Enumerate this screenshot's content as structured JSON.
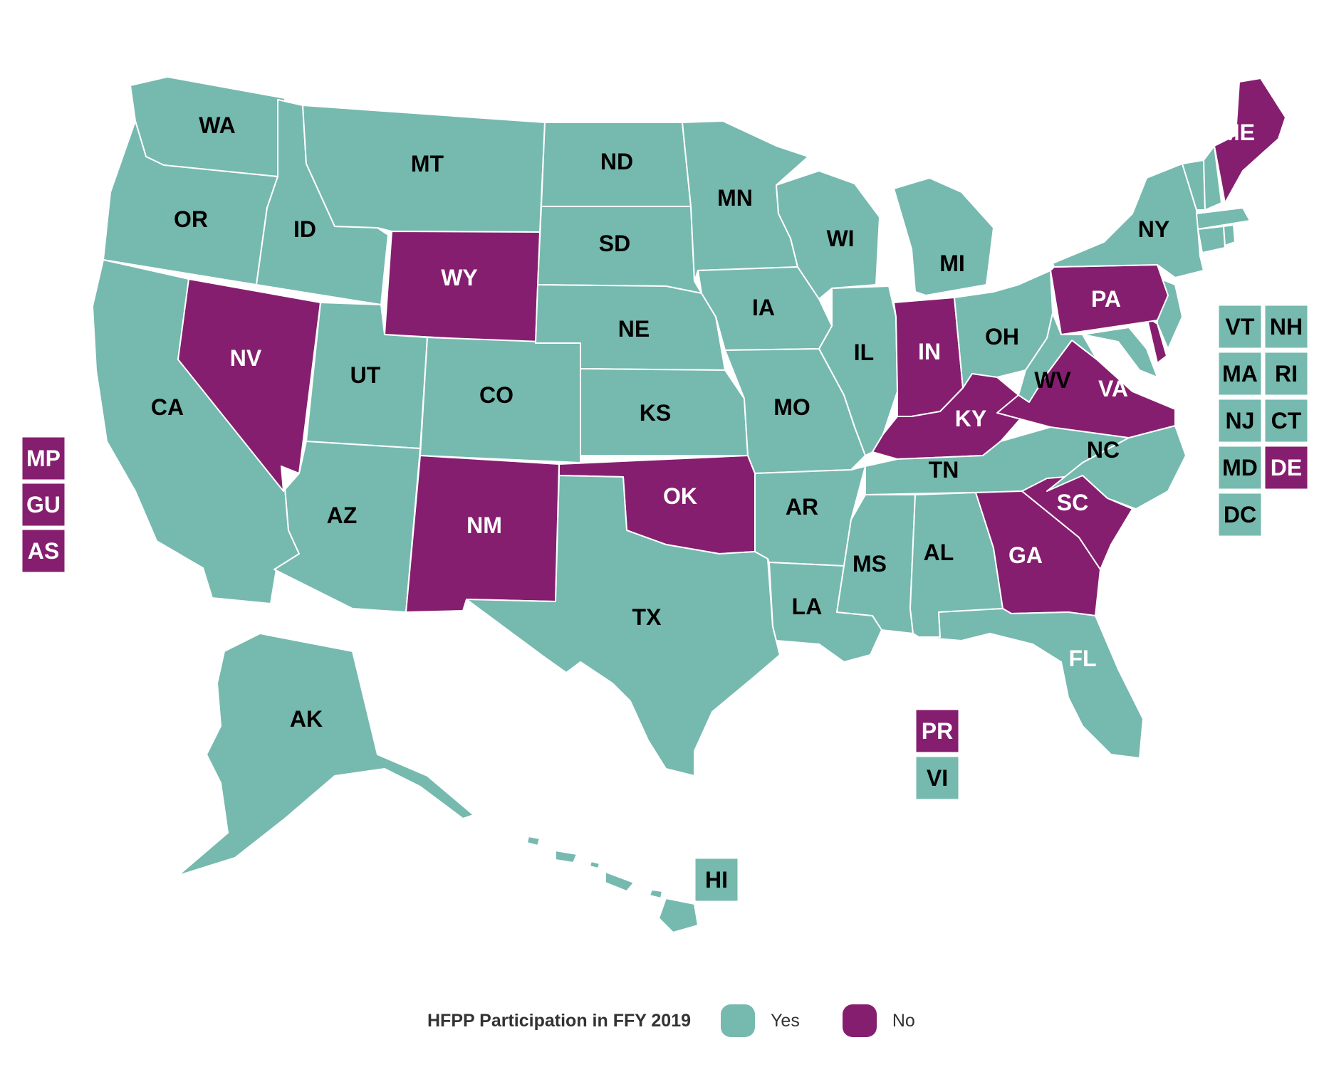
{
  "colors": {
    "yes": "#76b9af",
    "no": "#861e6f"
  },
  "legend": {
    "title": "HFPP Participation in FFY 2019",
    "yes_label": "Yes",
    "no_label": "No"
  },
  "states": {
    "WA": "yes",
    "OR": "yes",
    "CA": "yes",
    "ID": "yes",
    "NV": "no",
    "MT": "yes",
    "WY": "no",
    "UT": "yes",
    "AZ": "yes",
    "CO": "yes",
    "NM": "no",
    "ND": "yes",
    "SD": "yes",
    "NE": "yes",
    "KS": "yes",
    "OK": "no",
    "TX": "yes",
    "MN": "yes",
    "IA": "yes",
    "MO": "yes",
    "AR": "yes",
    "LA": "yes",
    "WI": "yes",
    "IL": "yes",
    "MI": "yes",
    "IN": "no",
    "OH": "yes",
    "KY": "no",
    "TN": "yes",
    "MS": "yes",
    "AL": "yes",
    "GA": "no",
    "FL": "yes",
    "SC": "no",
    "NC": "yes",
    "VA": "no",
    "WV": "yes",
    "PA": "no",
    "NY": "yes",
    "ME": "no",
    "AK": "yes",
    "HI": "yes",
    "VT": "yes",
    "NH": "yes",
    "MA": "yes",
    "RI": "yes",
    "NJ": "yes",
    "CT": "yes",
    "MD": "yes",
    "DE": "no",
    "DC": "yes",
    "MP": "no",
    "GU": "no",
    "AS": "no",
    "PR": "no",
    "VI": "yes"
  }
}
